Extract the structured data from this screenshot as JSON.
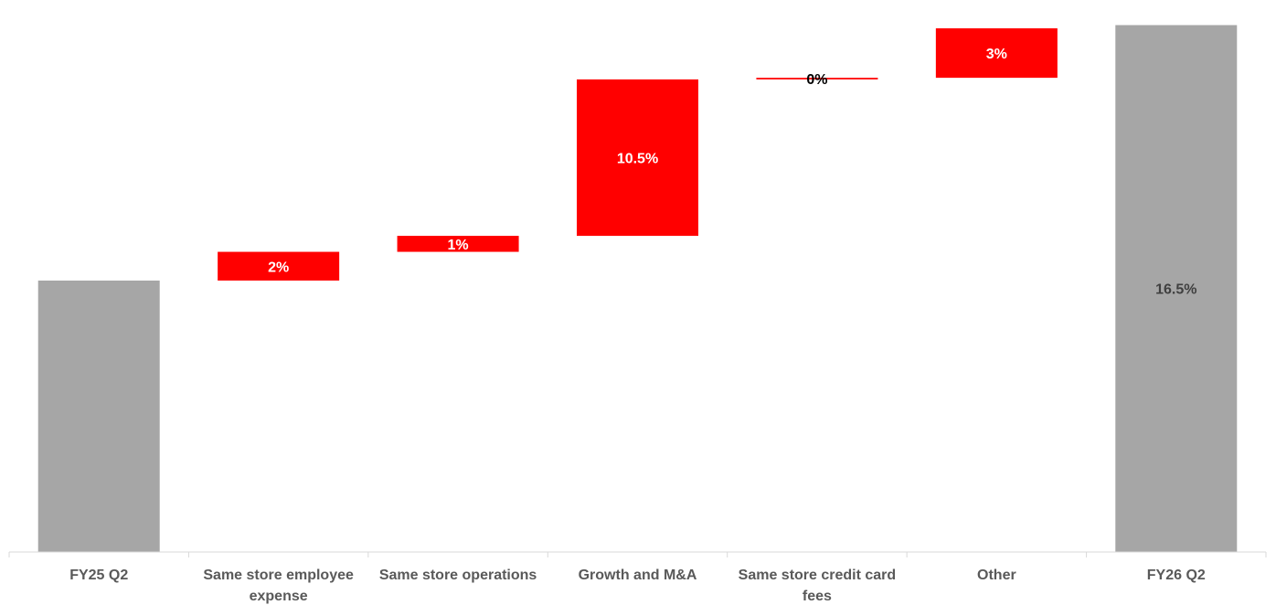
{
  "chart_data": {
    "type": "waterfall",
    "title": "",
    "xlabel": "",
    "ylabel": "",
    "ylim": [
      0,
      17
    ],
    "grid": false,
    "legend": "none",
    "categories": [
      [
        "FY25 Q2"
      ],
      [
        "Same store employee",
        "expense"
      ],
      [
        "Same store operations"
      ],
      [
        "Growth and M&A"
      ],
      [
        "Same store credit card",
        "fees"
      ],
      [
        "Other"
      ],
      [
        "FY26 Q2"
      ]
    ],
    "bars": [
      {
        "kind": "total",
        "start": 0,
        "end": 8.5,
        "label": ""
      },
      {
        "kind": "change",
        "start": 8.5,
        "end": 9.4,
        "label": "2%"
      },
      {
        "kind": "change",
        "start": 9.4,
        "end": 9.9,
        "label": "1%"
      },
      {
        "kind": "change",
        "start": 9.9,
        "end": 14.8,
        "label": "10.5%"
      },
      {
        "kind": "change",
        "start": 14.8,
        "end": 14.85,
        "label": "0%"
      },
      {
        "kind": "change",
        "start": 14.85,
        "end": 16.4,
        "label": "3%"
      },
      {
        "kind": "total",
        "start": 0,
        "end": 16.5,
        "label": "16.5%"
      }
    ],
    "colors": {
      "total": "#a6a6a6",
      "change": "#ff0000",
      "label_on_change": "#ffffff",
      "label_on_total": "#404040",
      "label_thin": "#000000",
      "axis": "#d9d9d9",
      "category_text": "#595959"
    }
  }
}
